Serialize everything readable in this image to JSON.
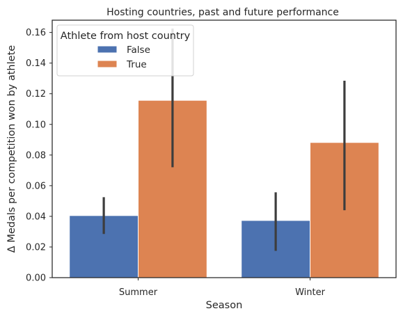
{
  "chart_data": {
    "type": "bar",
    "title": "Hosting countries, past and future performance",
    "xlabel": "Season",
    "ylabel": "Δ Medals per competition won by athlete",
    "categories": [
      "Summer",
      "Winter"
    ],
    "ylim": [
      0,
      0.168
    ],
    "yticks": [
      0.0,
      0.02,
      0.04,
      0.06,
      0.08,
      0.1,
      0.12,
      0.14,
      0.16
    ],
    "ytick_labels": [
      "0.00",
      "0.02",
      "0.04",
      "0.06",
      "0.08",
      "0.10",
      "0.12",
      "0.14",
      "0.16"
    ],
    "grid": false,
    "legend": {
      "title": "Athlete from host country",
      "placement": "top-left"
    },
    "series": [
      {
        "name": "False",
        "color": "#4c72b0",
        "values": [
          0.0405,
          0.0373
        ],
        "ci_low": [
          0.0285,
          0.0175
        ],
        "ci_high": [
          0.0525,
          0.0557
        ]
      },
      {
        "name": "True",
        "color": "#dd8452",
        "values": [
          0.1157,
          0.0882
        ],
        "ci_low": [
          0.072,
          0.044
        ],
        "ci_high": [
          0.1625,
          0.1285
        ]
      }
    ],
    "errorbar_color": "#3d3d3d"
  }
}
